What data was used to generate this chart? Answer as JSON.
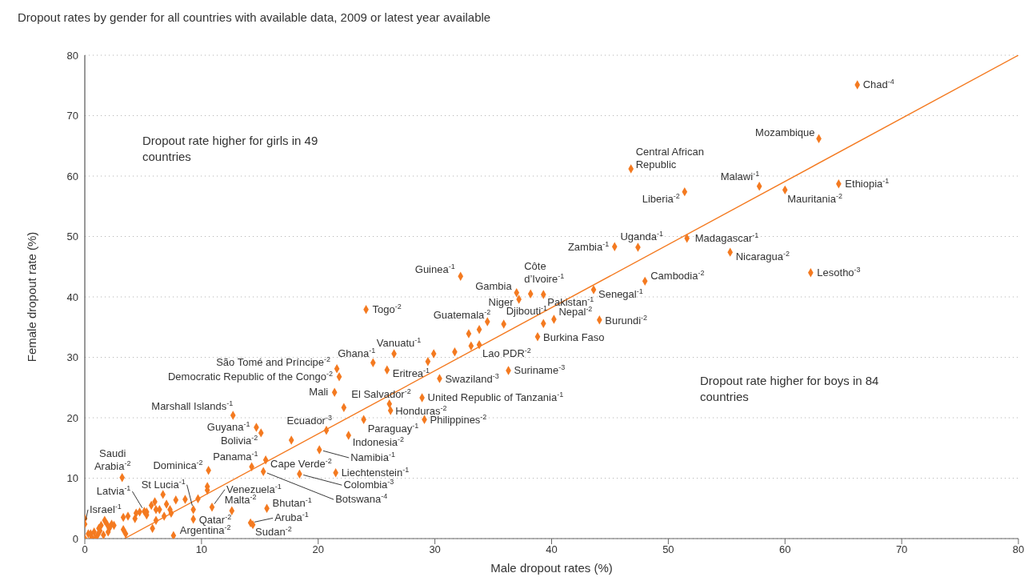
{
  "chart_data": {
    "type": "scatter",
    "title": "Dropout rates by gender for all countries with available data, 2009 or latest year available",
    "xlabel": "Male dropout rates (%)",
    "ylabel": "Female dropout rate (%)",
    "xlim": [
      0,
      80
    ],
    "ylim": [
      0,
      80
    ],
    "xticks": [
      0,
      10,
      20,
      30,
      40,
      50,
      60,
      70,
      80
    ],
    "yticks": [
      0,
      10,
      20,
      30,
      40,
      50,
      60,
      70,
      80
    ],
    "grid": "y",
    "series": [
      {
        "marker": "diamond",
        "color": "#f47a20",
        "x": [
          66.2,
          62.9,
          46.8,
          51.4,
          57.8,
          60.0,
          64.6,
          45.4,
          47.4,
          51.6,
          55.3,
          62.2,
          48.0,
          43.6,
          39.3,
          38.2,
          37.0,
          37.2,
          32.2,
          24.1,
          34.5,
          35.9,
          40.2,
          44.1,
          38.8,
          33.8,
          26.5,
          24.7,
          25.9,
          30.4,
          36.3,
          28.9,
          21.6,
          21.8,
          21.4,
          26.1,
          26.2,
          12.7,
          14.7,
          15.1,
          20.7,
          23.9,
          29.1,
          22.6,
          20.1,
          14.3,
          15.5,
          15.3,
          18.4,
          21.5,
          3.2,
          10.6,
          9.3,
          5.1,
          0,
          10.9,
          12.6,
          9.3,
          7.6,
          15.6,
          14.2,
          14.4,
          17.7,
          22.2,
          33.8,
          32.9,
          33.1,
          31.7,
          29.9,
          29.4,
          39.3,
          10.5,
          10.5,
          9.7,
          8.6,
          7.8,
          0,
          0,
          0.3,
          0.6,
          0.9,
          1.1,
          1.3,
          1.4,
          1.7,
          1.9,
          2.1,
          2.3,
          2.5,
          2.0,
          1.6,
          1.2,
          0.8,
          0.5,
          3.3,
          3.7,
          3.3,
          3.5,
          4.3,
          4.4,
          4.7,
          5.3,
          5.7,
          6.0,
          6.1,
          6.4,
          6.7,
          6.8,
          7.0,
          7.3,
          7.4,
          5.8,
          6.1,
          5.3
        ],
        "values": [
          75.1,
          66.2,
          61.2,
          57.4,
          58.3,
          57.7,
          58.7,
          48.3,
          48.2,
          49.7,
          47.4,
          44.0,
          42.6,
          41.2,
          40.4,
          40.5,
          40.7,
          39.6,
          43.4,
          37.9,
          35.9,
          35.5,
          36.3,
          36.2,
          33.4,
          32.1,
          30.6,
          29.1,
          27.9,
          26.5,
          27.8,
          23.3,
          28.1,
          26.8,
          24.2,
          22.3,
          21.2,
          20.4,
          18.4,
          17.5,
          17.9,
          19.7,
          19.7,
          17.1,
          14.7,
          11.9,
          13.0,
          11.1,
          10.7,
          10.9,
          10.1,
          11.3,
          4.8,
          4.5,
          2.4,
          5.2,
          4.6,
          3.2,
          0.5,
          5.0,
          2.6,
          2.3,
          16.3,
          21.7,
          34.6,
          33.9,
          31.9,
          30.9,
          30.6,
          29.3,
          35.6,
          8.6,
          8.0,
          6.6,
          6.5,
          6.4,
          3.3,
          0,
          0.8,
          0.2,
          0,
          0.6,
          1.3,
          2.2,
          3.0,
          2.4,
          1.7,
          2.4,
          2.2,
          1.1,
          0.6,
          1.7,
          1.1,
          0.8,
          3.5,
          3.7,
          1.5,
          0.8,
          3.3,
          4.2,
          4.4,
          4.4,
          5.5,
          6.1,
          4.8,
          4.8,
          7.3,
          3.7,
          5.7,
          4.8,
          4.2,
          1.7,
          3.0,
          3.9
        ]
      },
      {
        "type": "line",
        "color": "#f47a20",
        "x": [
          3.4,
          80
        ],
        "values": [
          0,
          80
        ]
      }
    ],
    "annotations": [
      "Dropout rate higher for girls in 49 countries",
      "Dropout rate higher for boys in 84 countries",
      {
        "text": "Chad$^{-4}$",
        "x": 66.2,
        "y": 75.1
      },
      {
        "text": "Mozambique",
        "x": 62.9,
        "y": 66.2
      },
      {
        "text": "Central African Republic",
        "x": 46.8,
        "y": 61.2
      },
      {
        "text": "Liberia$^{-2}$",
        "x": 51.4,
        "y": 57.4
      },
      {
        "text": "Malawi$^{-1}$",
        "x": 57.8,
        "y": 58.3
      },
      {
        "text": "Mauritania$^{-2}$",
        "x": 60.0,
        "y": 57.7
      },
      {
        "text": "Ethiopia$^{-1}$",
        "x": 64.6,
        "y": 58.7
      },
      {
        "text": "Zambia$^{-1}$",
        "x": 45.4,
        "y": 48.3
      },
      {
        "text": "Uganda$^{-1}$",
        "x": 47.4,
        "y": 48.2
      },
      {
        "text": "Madagascar$^{-1}$",
        "x": 51.6,
        "y": 49.7
      },
      {
        "text": "Nicaragua$^{-2}$",
        "x": 55.3,
        "y": 47.4
      },
      {
        "text": "Lesotho$^{-3}$",
        "x": 62.2,
        "y": 44.0
      },
      {
        "text": "Cambodia$^{-2}$",
        "x": 48.0,
        "y": 42.6
      },
      {
        "text": "Senegal$^{-1}$",
        "x": 43.6,
        "y": 41.2
      },
      {
        "text": "Pakistan$^{-1}$",
        "x": 39.3,
        "y": 40.4
      },
      {
        "text": "Côte d’Ivoire$^{-1}$",
        "x": 38.2,
        "y": 40.5
      },
      {
        "text": "Gambia",
        "x": 37.0,
        "y": 40.7
      },
      {
        "text": "Niger",
        "x": 37.2,
        "y": 39.6
      },
      {
        "text": "Guinea$^{-1}$",
        "x": 32.2,
        "y": 43.4
      },
      {
        "text": "Togo$^{-2}$",
        "x": 24.1,
        "y": 37.9
      },
      {
        "text": "Guatemala$^{-2}$",
        "x": 34.5,
        "y": 35.9
      },
      {
        "text": "Djibouti$^{-1}$",
        "x": 35.9,
        "y": 35.5
      },
      {
        "text": "Nepal$^{-2}$",
        "x": 40.2,
        "y": 36.3
      },
      {
        "text": "Burundi$^{-2}$",
        "x": 44.1,
        "y": 36.2
      },
      {
        "text": "Burkina Faso",
        "x": 38.8,
        "y": 33.4
      },
      {
        "text": "Lao PDR$^{-2}$",
        "x": 33.8,
        "y": 32.1
      },
      {
        "text": "Vanuatu$^{-1}$",
        "x": 26.5,
        "y": 30.6
      },
      {
        "text": "Ghana$^{-1}$",
        "x": 24.7,
        "y": 29.1
      },
      {
        "text": "Eritrea$^{-1}$",
        "x": 25.9,
        "y": 27.9
      },
      {
        "text": "Swaziland$^{-3}$",
        "x": 30.4,
        "y": 26.5
      },
      {
        "text": "Suriname$^{-3}$",
        "x": 36.3,
        "y": 27.8
      },
      {
        "text": "United Republic of Tanzania$^{-1}$",
        "x": 28.9,
        "y": 23.3
      },
      {
        "text": "São Tomé and Príncipe$^{-2}$",
        "x": 21.6,
        "y": 28.1
      },
      {
        "text": "Democratic Republic of the Congo$^{-2}$",
        "x": 21.8,
        "y": 26.8
      },
      {
        "text": "Mali",
        "x": 21.4,
        "y": 24.2
      },
      {
        "text": "El Salvador$^{-2}$",
        "x": 26.1,
        "y": 22.3
      },
      {
        "text": "Honduras$^{-2}$",
        "x": 26.2,
        "y": 21.2
      },
      {
        "text": "Marshall Islands$^{-1}$",
        "x": 12.7,
        "y": 20.4
      },
      {
        "text": "Guyana$^{-1}$",
        "x": 14.7,
        "y": 18.4
      },
      {
        "text": "Bolivia$^{-2}$",
        "x": 15.1,
        "y": 17.5
      },
      {
        "text": "Ecuador$^{-3}$",
        "x": 20.7,
        "y": 17.9
      },
      {
        "text": "Paraguay$^{-1}$",
        "x": 23.9,
        "y": 19.7
      },
      {
        "text": "Philippines$^{-2}$",
        "x": 29.1,
        "y": 19.7
      },
      {
        "text": "Indonesia$^{-2}$",
        "x": 22.6,
        "y": 17.1
      },
      {
        "text": "Namibia$^{-1}$",
        "x": 20.1,
        "y": 14.7
      },
      {
        "text": "Panama$^{-1}$",
        "x": 14.3,
        "y": 11.9
      },
      {
        "text": "Cape Verde$^{-2}$",
        "x": 15.5,
        "y": 13.0
      },
      {
        "text": "Botswana$^{-4}$",
        "x": 15.3,
        "y": 11.1
      },
      {
        "text": "Colombia$^{-3}$",
        "x": 18.4,
        "y": 10.7
      },
      {
        "text": "Liechtenstein$^{-1}$",
        "x": 21.5,
        "y": 10.9
      },
      {
        "text": "Saudi Arabia$^{-2}$",
        "x": 3.2,
        "y": 10.1
      },
      {
        "text": "Dominica$^{-2}$",
        "x": 10.6,
        "y": 11.3
      },
      {
        "text": "St Lucia$^{-1}$",
        "x": 9.3,
        "y": 4.8
      },
      {
        "text": "Latvia$^{-1}$",
        "x": 5.1,
        "y": 4.5
      },
      {
        "text": "Israel$^{-1}$",
        "x": 0,
        "y": 2.4
      },
      {
        "text": "Venezuela$^{-1}$",
        "x": 10.9,
        "y": 5.2
      },
      {
        "text": "Malta$^{-2}$",
        "x": 12.6,
        "y": 4.6
      },
      {
        "text": "Qatar$^{-2}$",
        "x": 9.3,
        "y": 3.2
      },
      {
        "text": "Argentina$^{-2}$",
        "x": 7.6,
        "y": 0.5
      },
      {
        "text": "Bhutan$^{-1}$",
        "x": 15.6,
        "y": 5.0
      },
      {
        "text": "Aruba$^{-1}$",
        "x": 14.2,
        "y": 2.6
      },
      {
        "text": "Sudan$^{-2}$",
        "x": 14.4,
        "y": 2.3
      }
    ]
  }
}
